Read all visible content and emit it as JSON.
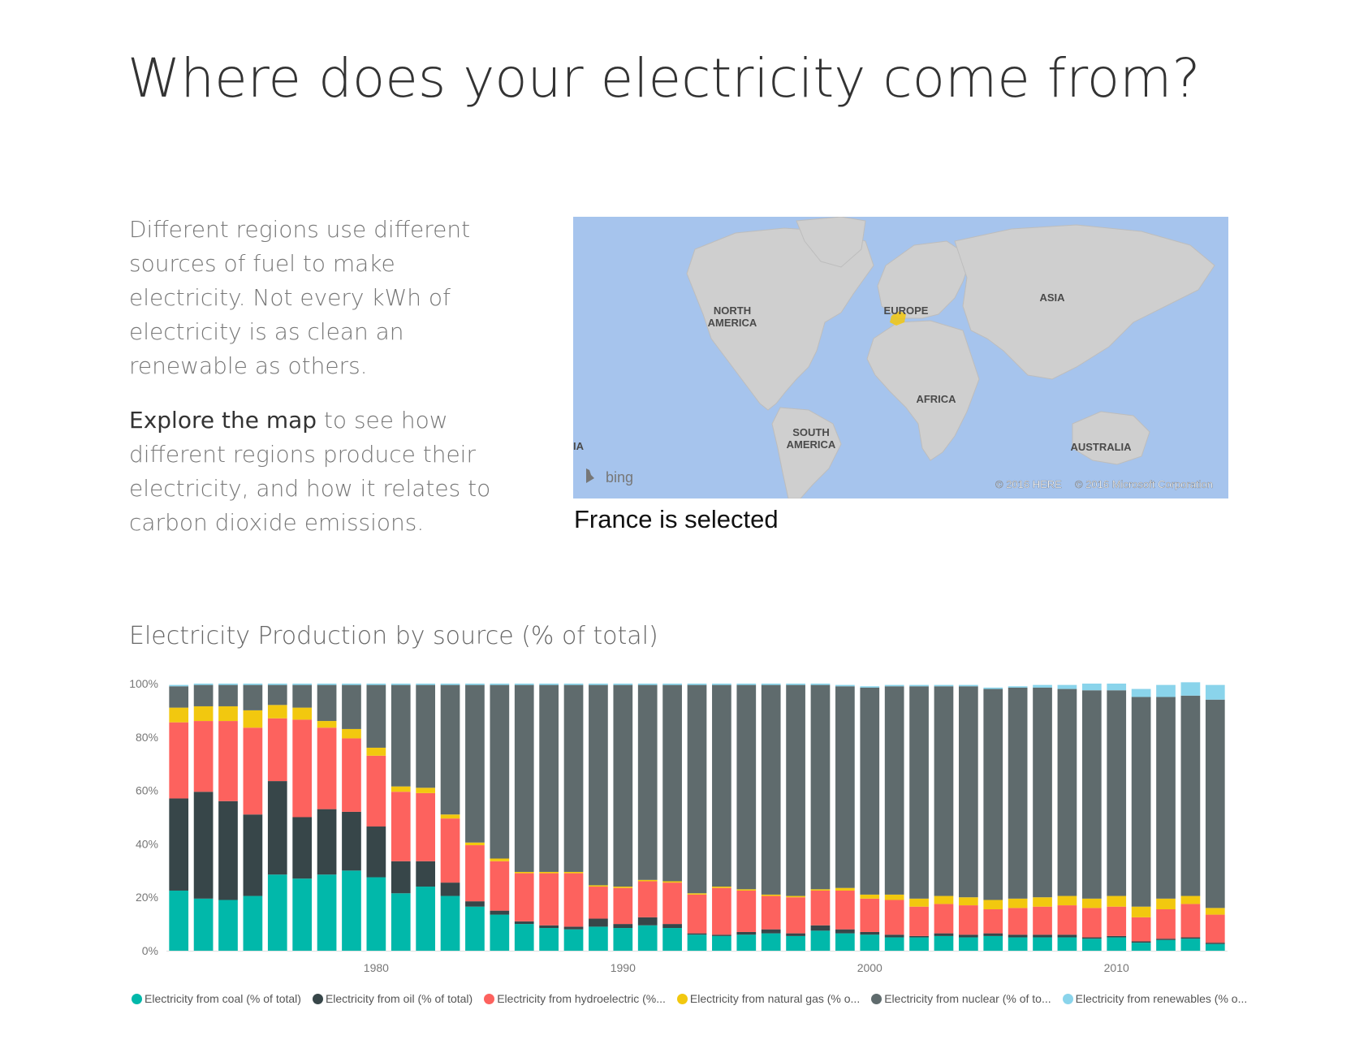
{
  "page": {
    "title": "Where does your electricity come from?"
  },
  "intro": {
    "paragraph1": "Different regions use different sources of fuel to make electricity. Not every kWh of electricity is as clean an renewable as others.",
    "paragraph2_emphasis": "Explore the map",
    "paragraph2_rest": " to see how different regions produce their electricity, and how it relates to carbon dioxide emissions."
  },
  "map": {
    "labels": {
      "north_america": [
        "NORTH",
        "AMERICA"
      ],
      "south_america": [
        "SOUTH",
        "AMERICA"
      ],
      "europe": "EUROPE",
      "asia": "ASIA",
      "africa": "AFRICA",
      "australia": "AUSTRALIA",
      "edge_fragment": "IA"
    },
    "logo_text": "bing",
    "copyright_here": "© 2016 HERE",
    "copyright_microsoft": "© 2016 Microsoft Corporation",
    "caption": "France is selected",
    "selected_color": "#f2c80f"
  },
  "chart_data": {
    "type": "bar",
    "stacked": true,
    "title": "Electricity Production by source (% of total)",
    "ylim": [
      0,
      100
    ],
    "y_ticks": [
      "0%",
      "20%",
      "40%",
      "60%",
      "80%",
      "100%"
    ],
    "x_ticks": [
      1980,
      1990,
      2000,
      2010
    ],
    "legend_position": "bottom",
    "categories": [
      1972,
      1973,
      1974,
      1975,
      1976,
      1977,
      1978,
      1979,
      1980,
      1981,
      1982,
      1983,
      1984,
      1985,
      1986,
      1987,
      1988,
      1989,
      1990,
      1991,
      1992,
      1993,
      1994,
      1995,
      1996,
      1997,
      1998,
      1999,
      2000,
      2001,
      2002,
      2003,
      2004,
      2005,
      2006,
      2007,
      2008,
      2009,
      2010,
      2011,
      2012,
      2013,
      2014
    ],
    "series": [
      {
        "name": "Electricity from coal (% of total)",
        "legend_label": "Electricity from coal (% of total)",
        "color": "#01b8aa",
        "values": [
          22.5,
          19.5,
          19,
          20.5,
          28.5,
          27,
          28.5,
          30,
          27.5,
          21.5,
          24,
          20.5,
          16.5,
          13.5,
          10,
          8.5,
          8,
          9,
          8.5,
          9.5,
          8.5,
          6,
          5.5,
          6,
          6.5,
          5.5,
          7.5,
          6.5,
          6,
          5,
          5,
          5.5,
          5,
          5.5,
          5,
          5,
          5,
          4.5,
          5,
          3,
          4,
          4.5,
          2.5
        ]
      },
      {
        "name": "Electricity from oil (% of total)",
        "legend_label": "Electricity from oil (% of total)",
        "color": "#374649",
        "values": [
          34.5,
          40,
          37,
          30.5,
          35,
          23,
          24.5,
          22,
          19,
          12,
          9.5,
          5,
          2,
          1.5,
          1,
          1,
          1,
          3,
          1.5,
          3,
          1.5,
          0.5,
          0.5,
          1,
          1.5,
          1,
          2,
          1.5,
          1,
          1,
          0.5,
          1,
          1,
          1,
          1,
          1,
          1,
          0.5,
          0.5,
          0.5,
          0.5,
          0.5,
          0.5
        ]
      },
      {
        "name": "Electricity from hydroelectric (% of total)",
        "legend_label": "Electricity from hydroelectric (%...",
        "color": "#fd625e",
        "values": [
          28.5,
          26.5,
          30,
          32.5,
          23.5,
          36.5,
          30.5,
          27.5,
          26.5,
          26,
          25.5,
          24,
          21,
          18.5,
          18,
          19.5,
          20,
          12,
          13.5,
          13.5,
          15.5,
          14.5,
          17.5,
          15.5,
          12.5,
          13.5,
          13,
          14.5,
          12.5,
          13,
          11,
          11,
          11,
          9,
          10,
          10.5,
          11,
          11,
          11,
          9,
          11,
          12.5,
          10.5
        ]
      },
      {
        "name": "Electricity from natural gas (% of total)",
        "legend_label": "Electricity from natural gas (% o...",
        "color": "#f2c80f",
        "values": [
          5.5,
          5.5,
          5.5,
          6.5,
          5,
          4.5,
          2.5,
          3.5,
          3,
          2,
          2,
          1.5,
          1,
          1,
          0.5,
          0.5,
          0.5,
          0.5,
          0.5,
          0.5,
          0.5,
          0.5,
          0.5,
          0.5,
          0.5,
          0.5,
          0.5,
          1,
          1.5,
          2,
          3,
          3,
          3,
          3.5,
          3.5,
          3.5,
          3.5,
          3.5,
          4,
          4,
          4,
          3,
          2.5
        ]
      },
      {
        "name": "Electricity from nuclear (% of total)",
        "legend_label": "Electricity from nuclear (% of to...",
        "color": "#5f6b6d",
        "values": [
          8,
          8,
          8,
          9.5,
          7.5,
          8.5,
          13.5,
          16.5,
          23.5,
          38,
          38.5,
          48.5,
          59,
          65,
          70,
          70,
          70,
          75,
          75.5,
          73,
          73.5,
          78,
          75.5,
          76.5,
          78.5,
          79,
          76.5,
          75.5,
          77.5,
          78,
          79.5,
          78.5,
          79,
          79,
          79,
          78.5,
          77.5,
          78,
          77,
          78.5,
          75.5,
          75,
          78
        ]
      },
      {
        "name": "Electricity from renewables (% of total)",
        "legend_label": "Electricity from renewables (% o...",
        "color": "#8ad4eb",
        "values": [
          0.5,
          0.5,
          0.5,
          0.5,
          0.5,
          0.5,
          0.5,
          0.5,
          0.5,
          0.5,
          0.5,
          0.5,
          0.5,
          0.5,
          0.5,
          0.5,
          0.5,
          0.5,
          0.5,
          0.5,
          0.5,
          0.5,
          0.5,
          0.5,
          0.5,
          0.5,
          0.5,
          0.5,
          0.5,
          0.5,
          0.5,
          0.5,
          0.5,
          0.5,
          0.5,
          1,
          1.5,
          2.5,
          2.5,
          3,
          4.5,
          5,
          5.5
        ]
      }
    ]
  }
}
